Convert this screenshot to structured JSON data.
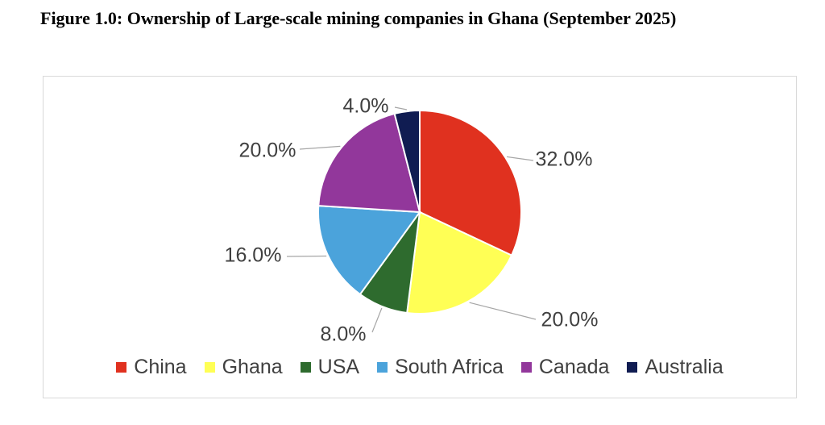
{
  "figure_title": "Figure 1.0: Ownership of Large-scale mining companies in Ghana (September 2025)",
  "chart_data": {
    "type": "pie",
    "title": "Figure 1.0: Ownership of Large-scale mining companies in Ghana (September 2025)",
    "categories": [
      "China",
      "Ghana",
      "USA",
      "South Africa",
      "Canada",
      "Australia"
    ],
    "values": [
      32.0,
      20.0,
      8.0,
      16.0,
      20.0,
      4.0
    ],
    "data_labels": [
      "32.0%",
      "20.0%",
      "8.0%",
      "16.0%",
      "20.0%",
      "4.0%"
    ],
    "colors": [
      "#e0311f",
      "#ffff55",
      "#2e6b2e",
      "#4ba3db",
      "#92379b",
      "#101c52"
    ],
    "start_angle_deg": 0,
    "direction": "clockwise",
    "legend_position": "bottom",
    "grid": false
  },
  "legend": [
    {
      "label": "China",
      "color": "#e0311f"
    },
    {
      "label": "Ghana",
      "color": "#ffff55"
    },
    {
      "label": "USA",
      "color": "#2e6b2e"
    },
    {
      "label": "South Africa",
      "color": "#4ba3db"
    },
    {
      "label": "Canada",
      "color": "#92379b"
    },
    {
      "label": "Australia",
      "color": "#101c52"
    }
  ]
}
